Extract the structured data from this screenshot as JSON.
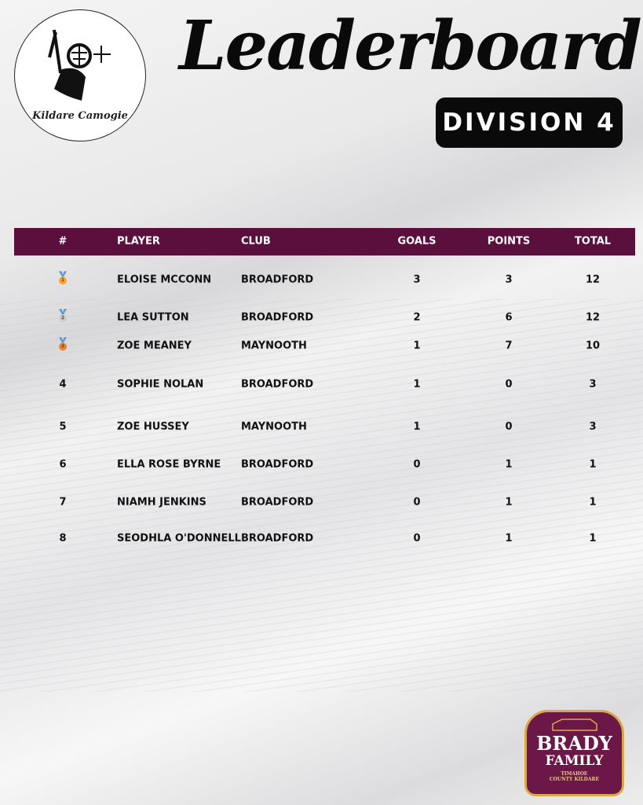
{
  "logo": {
    "text": "Kildare Camogie",
    "icon": "camogie-player-logo"
  },
  "title": "Leaderboard",
  "division": "DIVISION 4",
  "table": {
    "headers": [
      "#",
      "PLAYER",
      "CLUB",
      "GOALS",
      "POINTS",
      "TOTAL"
    ],
    "rows": [
      {
        "rank": "1",
        "medal": "gold",
        "player": "ELOISE MCCONN",
        "club": "BROADFORD",
        "goals": "3",
        "points": "3",
        "total": "12"
      },
      {
        "rank": "2",
        "medal": "silver",
        "player": "LEA SUTTON",
        "club": "BROADFORD",
        "goals": "2",
        "points": "6",
        "total": "12"
      },
      {
        "rank": "3",
        "medal": "bronze",
        "player": "ZOE MEANEY",
        "club": "MAYNOOTH",
        "goals": "1",
        "points": "7",
        "total": "10"
      },
      {
        "rank": "4",
        "player": "SOPHIE NOLAN",
        "club": "BROADFORD",
        "goals": "1",
        "points": "0",
        "total": "3"
      },
      {
        "rank": "5",
        "player": "ZOE HUSSEY",
        "club": "MAYNOOTH",
        "goals": "1",
        "points": "0",
        "total": "3"
      },
      {
        "rank": "6",
        "player": "ELLA ROSE BYRNE",
        "club": "BROADFORD",
        "goals": "0",
        "points": "1",
        "total": "1"
      },
      {
        "rank": "7",
        "player": "NIAMH JENKINS",
        "club": "BROADFORD",
        "goals": "0",
        "points": "1",
        "total": "1"
      },
      {
        "rank": "8",
        "player": "SEODHLA O'DONNELL",
        "club": "BROADFORD",
        "goals": "0",
        "points": "1",
        "total": "1"
      }
    ]
  },
  "sponsor": {
    "line1": "BRADY",
    "line2": "FAMILY",
    "line3": "TIMAHOE",
    "line4": "COUNTY KILDARE"
  },
  "colors": {
    "header": "#5a0f3c",
    "gold": "#f0a830",
    "silver": "#c8ccd4",
    "bronze": "#e8833a"
  }
}
